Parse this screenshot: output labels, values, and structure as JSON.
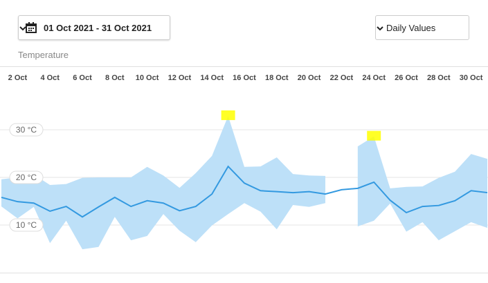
{
  "ui": {
    "date_range": "01 Oct 2021 - 31 Oct 2021",
    "view_select": "Daily Values",
    "axis_label": "Temperature"
  },
  "chart_data": {
    "type": "line",
    "categories": [
      null,
      "2 Oct",
      null,
      "4 Oct",
      null,
      "6 Oct",
      null,
      "8 Oct",
      null,
      "10 Oct",
      null,
      "12 Oct",
      null,
      "14 Oct",
      null,
      "16 Oct",
      null,
      "18 Oct",
      null,
      "20 Oct",
      null,
      "22 Oct",
      null,
      "24 Oct",
      null,
      "26 Oct",
      null,
      "28 Oct",
      null,
      "30 Oct",
      null
    ],
    "values": [
      15.8,
      14.9,
      14.6,
      12.9,
      13.9,
      11.7,
      13.8,
      15.8,
      13.9,
      15.1,
      14.6,
      13.0,
      13.9,
      16.5,
      22.3,
      18.8,
      17.2,
      17.0,
      16.8,
      17.0,
      16.5,
      17.4,
      17.7,
      19.0,
      15.2,
      12.6,
      13.9,
      14.1,
      15.1,
      17.2,
      16.8
    ],
    "high": [
      19.6,
      20.0,
      20.6,
      18.4,
      18.6,
      19.9,
      20.0,
      20.0,
      20.0,
      22.2,
      20.4,
      17.8,
      20.9,
      24.5,
      32.9,
      22.2,
      22.3,
      24.2,
      20.7,
      20.4,
      20.3,
      null,
      26.5,
      28.6,
      17.7,
      18.0,
      18.1,
      19.9,
      21.2,
      24.9,
      23.9
    ],
    "low": [
      13.9,
      11.4,
      13.8,
      6.2,
      10.9,
      4.9,
      5.4,
      11.7,
      6.8,
      7.7,
      12.3,
      8.8,
      6.4,
      9.9,
      12.3,
      14.6,
      12.8,
      9.1,
      14.2,
      13.8,
      14.6,
      null,
      9.7,
      10.9,
      14.5,
      8.6,
      10.6,
      6.8,
      8.7,
      10.6,
      9.4
    ],
    "color": "#3399e0",
    "band_color": "#bde0f8",
    "highlight_color": "#ffff00",
    "ylim": [
      0,
      38.4
    ],
    "yticks": [
      {
        "value": 10,
        "label": "10 °C"
      },
      {
        "value": 20,
        "label": "20 °C"
      },
      {
        "value": 30,
        "label": "30 °C"
      }
    ],
    "grid": true
  }
}
